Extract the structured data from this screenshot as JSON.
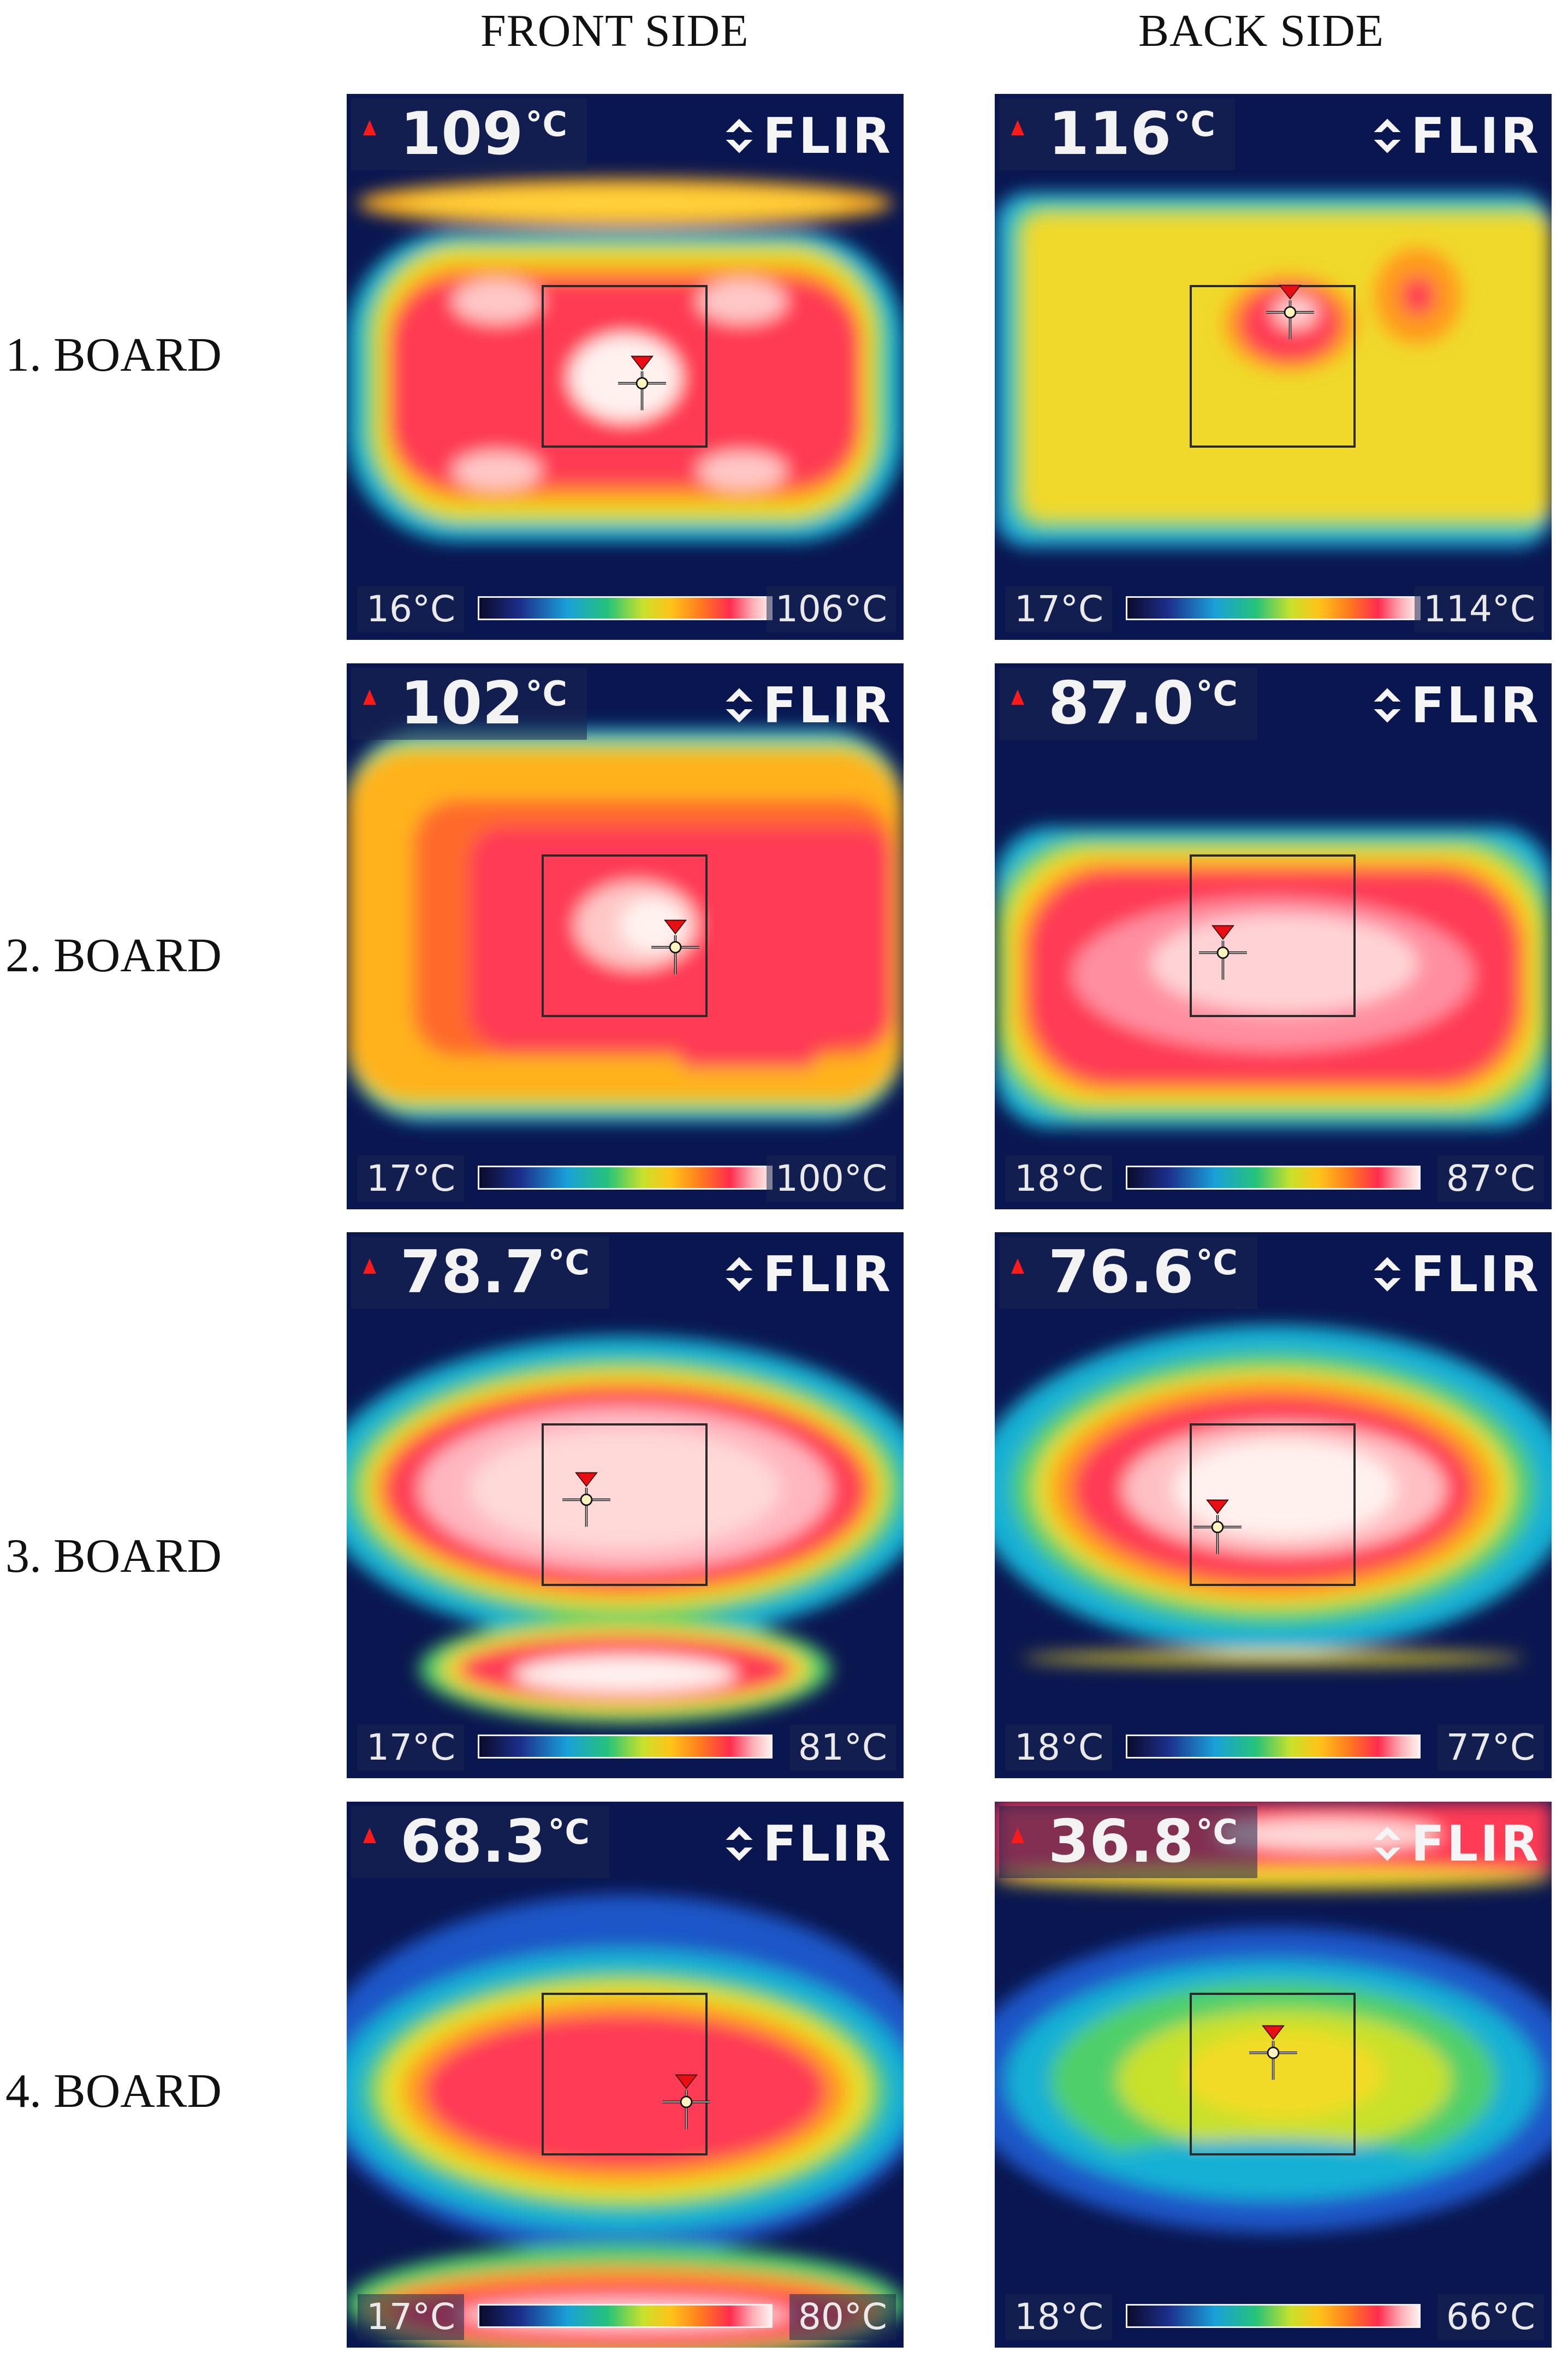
{
  "headers": {
    "front": "FRONT SIDE",
    "back": "BACK SIDE"
  },
  "rows": [
    {
      "label": "1. BOARD",
      "front": {
        "spot_temp": "109",
        "unit": "°C",
        "scale_min": "16°C",
        "scale_max": "106°C",
        "brand": "FLIR"
      },
      "back": {
        "spot_temp": "116",
        "unit": "°C",
        "scale_min": "17°C",
        "scale_max": "114°C",
        "brand": "FLIR"
      }
    },
    {
      "label": "2. BOARD",
      "front": {
        "spot_temp": "102",
        "unit": "°C",
        "scale_min": "17°C",
        "scale_max": "100°C",
        "brand": "FLIR"
      },
      "back": {
        "spot_temp": "87.0",
        "unit": "°C",
        "scale_min": "18°C",
        "scale_max": "87°C",
        "brand": "FLIR"
      }
    },
    {
      "label": "3. BOARD",
      "front": {
        "spot_temp": "78.7",
        "unit": "°C",
        "scale_min": "17°C",
        "scale_max": "81°C",
        "brand": "FLIR"
      },
      "back": {
        "spot_temp": "76.6",
        "unit": "°C",
        "scale_min": "18°C",
        "scale_max": "77°C",
        "brand": "FLIR"
      }
    },
    {
      "label": "4. BOARD",
      "front": {
        "spot_temp": "68.3",
        "unit": "°C",
        "scale_min": "17°C",
        "scale_max": "80°C",
        "brand": "FLIR"
      },
      "back": {
        "spot_temp": "36.8",
        "unit": "°C",
        "scale_min": "18°C",
        "scale_max": "66°C",
        "brand": "FLIR"
      }
    }
  ],
  "colors": {
    "background_cold": "#0a1650",
    "blue": "#1f57c8",
    "cyan": "#17b3d6",
    "green": "#2fc56a",
    "yellow": "#f2df2a",
    "orange": "#ffa31c",
    "red": "#ff2d55",
    "white_hot": "#fff2ee",
    "spot_marker": "#e80f14"
  },
  "icons": {
    "flame": "flame-icon",
    "logo": "flir-logo-icon",
    "crosshair": "crosshair-icon"
  }
}
